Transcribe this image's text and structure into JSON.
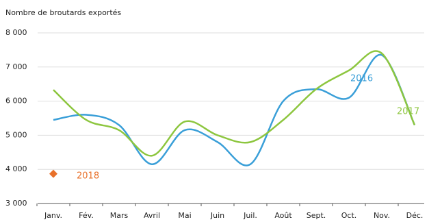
{
  "chart_data": {
    "type": "line",
    "title": "Nombre de broutards exportés",
    "categories": [
      "Janv.",
      "Fév.",
      "Mars",
      "Avril",
      "Mai",
      "Juin",
      "Juil.",
      "Août",
      "Sept.",
      "Oct.",
      "Nov.",
      "Déc."
    ],
    "series": [
      {
        "name": "2016",
        "color": "#3a9fd8",
        "values": [
          5450,
          5600,
          5300,
          4150,
          5150,
          4800,
          4150,
          6000,
          6350,
          6100,
          7350,
          5300
        ]
      },
      {
        "name": "2017",
        "color": "#8dc63f",
        "values": [
          6330,
          5450,
          5150,
          4400,
          5400,
          5000,
          4800,
          5450,
          6350,
          6900,
          7400,
          5300
        ]
      },
      {
        "name": "2018",
        "color": "#e8702a",
        "values": [
          3870,
          null,
          null,
          null,
          null,
          null,
          null,
          null,
          null,
          null,
          null,
          null
        ]
      }
    ],
    "ylim": [
      3000,
      8000
    ],
    "yticks": [
      {
        "value": 3000,
        "label": "3 000"
      },
      {
        "value": 4000,
        "label": "4 000"
      },
      {
        "value": 5000,
        "label": "5 000"
      },
      {
        "value": 6000,
        "label": "6 000"
      },
      {
        "value": 7000,
        "label": "7 000"
      },
      {
        "value": 8000,
        "label": "8 000"
      }
    ],
    "grid": true
  }
}
